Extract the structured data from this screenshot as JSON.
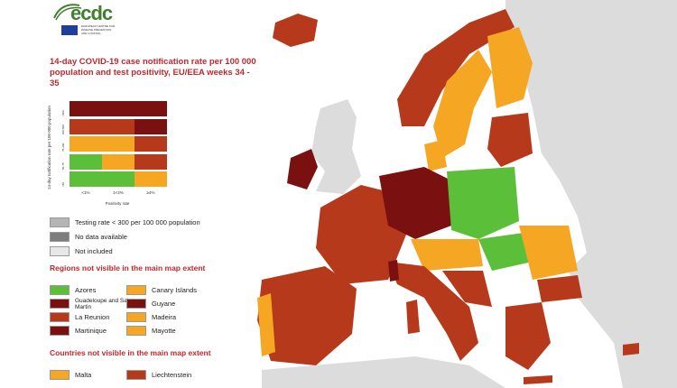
{
  "logo": {
    "text": "ecdc",
    "subtitle": "EUROPEAN CENTRE FOR DISEASE PREVENTION AND CONTROL"
  },
  "title": "14-day COVID-19 case notification rate per 100 000 population and test positivity, EU/EEA weeks 34 - 35",
  "matrix": {
    "y_axis_label": "14-day notification rate per 100 000 population",
    "x_axis_label": "Positivity rate",
    "x_ticks": [
      "<1%",
      "1<4%",
      "≥4%"
    ],
    "y_ticks": [
      ">500",
      "200-500",
      "75-200",
      "50-75",
      "<50"
    ],
    "rows": [
      [
        "#7a1010",
        "#7a1010",
        "#7a1010"
      ],
      [
        "#b5391a",
        "#b5391a",
        "#7a1010"
      ],
      [
        "#f5a623",
        "#f5a623",
        "#b5391a"
      ],
      [
        "#5cbf3a",
        "#f5a623",
        "#b5391a"
      ],
      [
        "#5cbf3a",
        "#5cbf3a",
        "#f5a623"
      ]
    ]
  },
  "legend_grey": [
    {
      "label": "Testing rate < 300 per 100 000 population",
      "color": "#b5b5b5"
    },
    {
      "label": "No data available",
      "color": "#7d7d7d"
    },
    {
      "label": "Not included",
      "color": "#e8e8e8"
    }
  ],
  "regions_title": "Regions not visible in the main map extent",
  "regions": [
    {
      "label": "Azores",
      "color": "#5cbf3a"
    },
    {
      "label": "Canary Islands",
      "color": "#f5a623"
    },
    {
      "label": "Guadeloupe and Saint Martin",
      "color": "#7a1010"
    },
    {
      "label": "Guyane",
      "color": "#7a1010"
    },
    {
      "label": "La Reunion",
      "color": "#b5391a"
    },
    {
      "label": "Madeira",
      "color": "#f5a623"
    },
    {
      "label": "Martinique",
      "color": "#7a1010"
    },
    {
      "label": "Mayotte",
      "color": "#f5a623"
    }
  ],
  "countries_title": "Countries not visible in the main map extent",
  "countries": [
    {
      "label": "Malta",
      "color": "#f5a623"
    },
    {
      "label": "Liechtenstein",
      "color": "#b5391a"
    }
  ],
  "colors": {
    "dark_red": "#7a1010",
    "red": "#b5391a",
    "orange": "#f5a623",
    "green": "#5cbf3a",
    "sea": "#ffffff",
    "not_included": "#dcdcdc",
    "title_red": "#c1272d"
  }
}
